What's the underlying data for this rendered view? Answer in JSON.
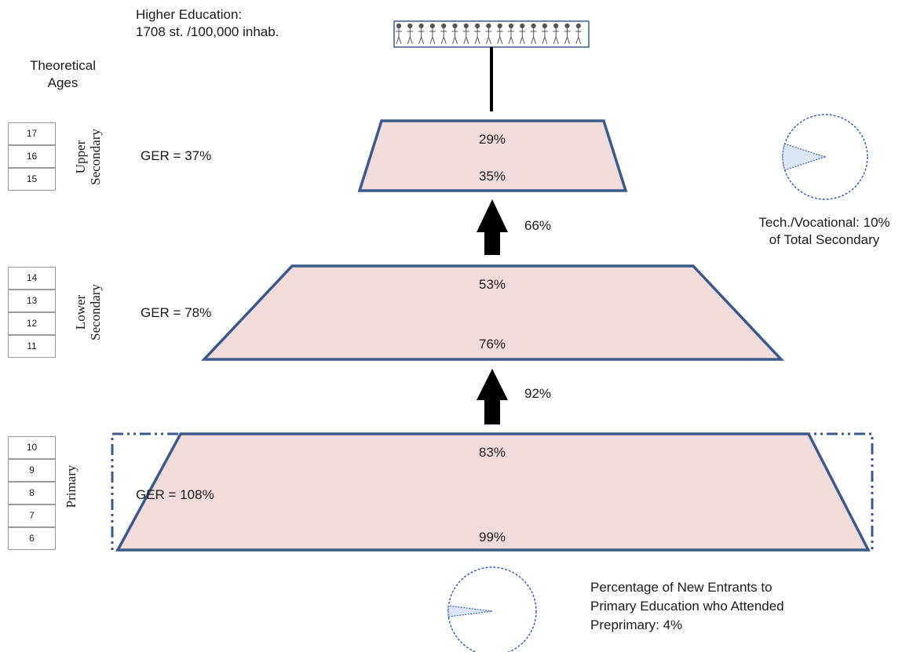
{
  "higher_education": {
    "title": "Higher Education:",
    "value": "1708 st. /100,000 inhab."
  },
  "theoretical_ages": {
    "line1": "Theoretical",
    "line2": "Ages"
  },
  "levels": {
    "upper": {
      "name_line1": "Upper",
      "name_line2": "Secondary",
      "ger": "GER = 37%",
      "top_pct": "29%",
      "bottom_pct": "35%",
      "ages": [
        "17",
        "16",
        "15"
      ]
    },
    "lower": {
      "name_line1": "Lower",
      "name_line2": "Secondary",
      "ger": "GER = 78%",
      "top_pct": "53%",
      "bottom_pct": "76%",
      "ages": [
        "14",
        "13",
        "12",
        "11"
      ]
    },
    "primary": {
      "name": "Primary",
      "ger": "GER = 108%",
      "top_pct": "83%",
      "bottom_pct": "99%",
      "ages": [
        "10",
        "9",
        "8",
        "7",
        "6"
      ]
    }
  },
  "transitions": {
    "lower_to_upper": "66%",
    "primary_to_lower": "92%"
  },
  "tech_vocational": {
    "line1": "Tech./Vocational: 10%",
    "line2": "of Total Secondary",
    "share": 0.1
  },
  "preprimary": {
    "line1": "Percentage of New Entrants to",
    "line2": "Primary Education who Attended",
    "line3": "Preprimary: 4%",
    "share": 0.04
  },
  "colors": {
    "fill": "#f2dcdb",
    "stroke": "#3a5a8c",
    "pie_fill": "#dbe5f3",
    "pie_stroke": "#3b5fc0"
  }
}
